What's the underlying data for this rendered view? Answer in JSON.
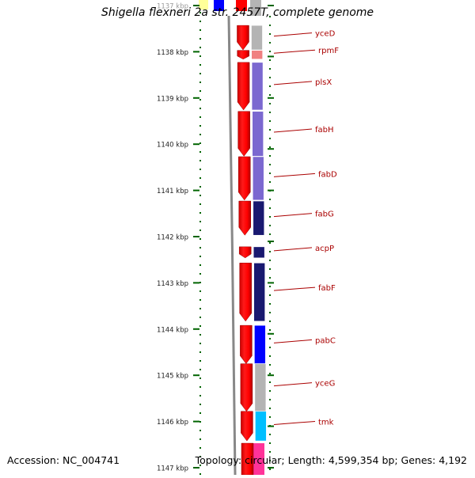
{
  "title": "Shigella flexneri 2a str. 2457T, complete genome",
  "accession": "Accession: NC_004741",
  "summary": "Topology: circular; Length: 4,599,354 bp; Genes: 4,192",
  "ruler": {
    "unit": "kbp",
    "ticks": [
      {
        "kbp": 1137,
        "label": "1137 kbp"
      },
      {
        "kbp": 1138,
        "label": "1138 kbp"
      },
      {
        "kbp": 1139,
        "label": "1139 kbp"
      },
      {
        "kbp": 1140,
        "label": "1140 kbp"
      },
      {
        "kbp": 1141,
        "label": "1141 kbp"
      },
      {
        "kbp": 1142,
        "label": "1142 kbp"
      },
      {
        "kbp": 1143,
        "label": "1143 kbp"
      },
      {
        "kbp": 1144,
        "label": "1144 kbp"
      },
      {
        "kbp": 1145,
        "label": "1145 kbp"
      },
      {
        "kbp": 1146,
        "label": "1146 kbp"
      },
      {
        "kbp": 1147,
        "label": "1147 kbp"
      }
    ]
  },
  "genes": [
    {
      "name": "yceD",
      "start_kbp": 1137.43,
      "end_kbp": 1137.96,
      "cog_color": "#b4b4b4"
    },
    {
      "name": "rpmF",
      "start_kbp": 1137.97,
      "end_kbp": 1138.16,
      "cog_color": "#f08080"
    },
    {
      "name": "plsX",
      "start_kbp": 1138.23,
      "end_kbp": 1139.26,
      "cog_color": "#7b68d0"
    },
    {
      "name": "fabH",
      "start_kbp": 1139.29,
      "end_kbp": 1140.26,
      "cog_color": "#7b68d0"
    },
    {
      "name": "fabD",
      "start_kbp": 1140.27,
      "end_kbp": 1141.21,
      "cog_color": "#7b68d0"
    },
    {
      "name": "fabG",
      "start_kbp": 1141.23,
      "end_kbp": 1141.97,
      "cog_color": "#191970"
    },
    {
      "name": "acpP",
      "start_kbp": 1142.22,
      "end_kbp": 1142.46,
      "cog_color": "#191970"
    },
    {
      "name": "fabF",
      "start_kbp": 1142.57,
      "end_kbp": 1143.83,
      "cog_color": "#191970"
    },
    {
      "name": "pabC",
      "start_kbp": 1143.92,
      "end_kbp": 1144.75,
      "cog_color": "#0000ff"
    },
    {
      "name": "yceG",
      "start_kbp": 1144.75,
      "end_kbp": 1145.78,
      "cog_color": "#b4b4b4"
    },
    {
      "name": "tmk",
      "start_kbp": 1145.78,
      "end_kbp": 1146.42,
      "cog_color": "#00bfff"
    }
  ],
  "colors": {
    "cds": "#ff0000",
    "backbone": "#888888",
    "ruler_tick": "#006400",
    "gene_label": "#aa0000",
    "top_cog_partial": "#0000ff",
    "top_yellow": "#ffff99",
    "bottom_cog_partial": "#ff3399"
  }
}
